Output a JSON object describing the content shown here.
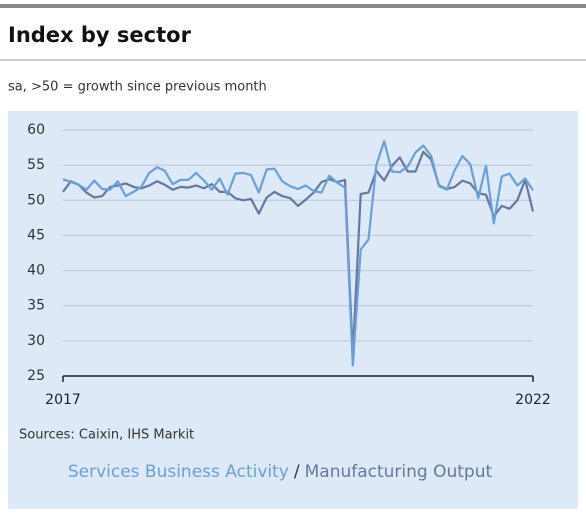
{
  "chart_data": {
    "type": "line",
    "title": "Index by sector",
    "subtitle": "sa, >50 = growth since previous month",
    "source": "Sources: Caixin, IHS Markit",
    "legend_separator": "/",
    "categories": [
      "2017",
      null,
      null,
      null,
      null,
      null,
      null,
      null,
      null,
      null,
      null,
      null,
      null,
      null,
      null,
      null,
      null,
      null,
      null,
      null,
      null,
      null,
      null,
      null,
      null,
      null,
      null,
      null,
      null,
      null,
      null,
      null,
      null,
      null,
      null,
      null,
      null,
      null,
      null,
      null,
      null,
      null,
      null,
      null,
      null,
      null,
      null,
      null,
      null,
      null,
      null,
      null,
      null,
      null,
      null,
      null,
      null,
      null,
      null,
      null,
      "2022"
    ],
    "series": [
      {
        "name": "Services Business Activity",
        "color": "#6a9fd8",
        "values": [
          53,
          52.6,
          52.2,
          51.5,
          52.8,
          51.6,
          51.5,
          52.7,
          50.6,
          51.2,
          51.9,
          53.9,
          54.7,
          54.2,
          52.3,
          52.9,
          52.9,
          53.9,
          52.8,
          51.5,
          53.1,
          50.8,
          53.8,
          53.9,
          53.6,
          51.1,
          54.4,
          54.5,
          52.7,
          52.0,
          51.6,
          52.1,
          51.3,
          51.1,
          53.5,
          52.5,
          51.8,
          26.5,
          43.0,
          44.4,
          55.0,
          58.4,
          54.1,
          54.0,
          54.8,
          56.8,
          57.8,
          56.3,
          52.0,
          51.5,
          54.3,
          56.3,
          55.1,
          50.3,
          54.9,
          46.7,
          53.4,
          53.8,
          52.1,
          53.1,
          51.4
        ]
      },
      {
        "name": "Manufacturing Output",
        "color": "#6677a0",
        "values": [
          51.2,
          52.7,
          52.2,
          51.1,
          50.4,
          50.6,
          51.9,
          52.1,
          52.4,
          51.9,
          51.7,
          52.1,
          52.7,
          52.2,
          51.5,
          51.9,
          51.8,
          52.1,
          51.7,
          52.3,
          51.2,
          51.2,
          50.3,
          50.0,
          50.2,
          48.1,
          50.4,
          51.2,
          50.6,
          50.3,
          49.2,
          50.1,
          51.1,
          52.6,
          53.0,
          52.6,
          52.9,
          28.0,
          50.9,
          51.1,
          54.2,
          52.8,
          54.9,
          56.1,
          54.1,
          54.1,
          56.9,
          55.8,
          52.1,
          51.6,
          51.9,
          52.8,
          52.4,
          51.0,
          50.8,
          47.7,
          49.2,
          48.8,
          50.0,
          52.9,
          48.4
        ]
      }
    ],
    "ylim": [
      25,
      60
    ],
    "yticks": [
      25,
      30,
      35,
      40,
      45,
      50,
      55,
      60
    ],
    "grid": true
  }
}
